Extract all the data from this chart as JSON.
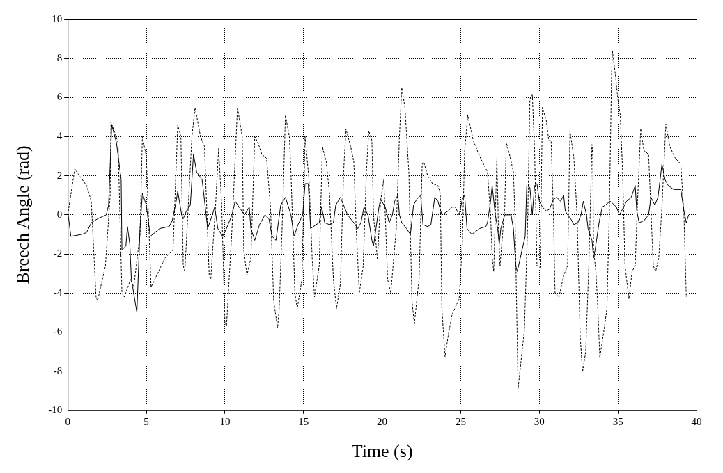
{
  "chart_data": {
    "type": "line",
    "xlabel": "Time (s)",
    "ylabel": "Breech Angle (rad)",
    "xlim": [
      0,
      40
    ],
    "ylim": [
      -10,
      10
    ],
    "xticks": [
      0,
      5,
      10,
      15,
      20,
      25,
      30,
      35,
      40
    ],
    "yticks": [
      -10,
      -8,
      -6,
      -4,
      -2,
      0,
      2,
      4,
      6,
      8,
      10
    ],
    "grid": true,
    "legend": false,
    "marker": "none",
    "series": [
      {
        "color": "#000000",
        "line_style": "dashed",
        "x": [
          0,
          0.45,
          1.2,
          1.5,
          1.8,
          1.9,
          2.4,
          2.7,
          2.75,
          3.0,
          3.2,
          3.45,
          3.6,
          4.0,
          4.2,
          4.6,
          4.75,
          5.0,
          5.3,
          6.2,
          6.7,
          7.0,
          7.2,
          7.35,
          7.45,
          7.9,
          8.1,
          8.45,
          8.7,
          9.0,
          9.1,
          9.4,
          9.6,
          9.8,
          10.0,
          10.1,
          10.45,
          10.8,
          11.1,
          11.2,
          11.4,
          11.65,
          11.9,
          12.1,
          12.35,
          12.65,
          12.9,
          13.1,
          13.35,
          13.45,
          13.65,
          13.85,
          14.1,
          14.2,
          14.45,
          14.6,
          14.9,
          15.1,
          15.35,
          15.55,
          15.7,
          16.0,
          16.2,
          16.45,
          16.65,
          16.9,
          17.1,
          17.35,
          17.55,
          17.7,
          18.0,
          18.2,
          18.35,
          18.55,
          18.8,
          19.0,
          19.15,
          19.35,
          19.45,
          19.7,
          19.9,
          20.1,
          20.2,
          20.35,
          20.55,
          20.9,
          21.1,
          21.25,
          21.45,
          21.7,
          21.9,
          22.05,
          22.2,
          22.35,
          22.55,
          22.65,
          22.9,
          23.2,
          23.55,
          23.7,
          23.8,
          24.0,
          24.2,
          24.45,
          24.9,
          25.1,
          25.25,
          25.45,
          25.8,
          26.2,
          26.7,
          26.9,
          27.0,
          27.1,
          27.3,
          27.4,
          27.5,
          27.8,
          27.9,
          28.1,
          28.35,
          28.45,
          28.6,
          28.65,
          28.9,
          29.05,
          29.25,
          29.4,
          29.55,
          29.7,
          29.85,
          30.05,
          30.2,
          30.45,
          30.6,
          30.75,
          30.9,
          31.0,
          31.25,
          31.55,
          31.8,
          31.95,
          32.2,
          32.4,
          32.6,
          32.75,
          32.95,
          33.15,
          33.35,
          33.4,
          33.45,
          33.6,
          33.7,
          33.85,
          34.15,
          34.3,
          34.45,
          34.6,
          34.65,
          34.85,
          35.0,
          35.15,
          35.3,
          35.45,
          35.7,
          35.9,
          36.1,
          36.25,
          36.45,
          36.65,
          36.95,
          37.25,
          37.4,
          37.6,
          37.8,
          38.05,
          38.3,
          38.65,
          39.0,
          39.2,
          39.35
        ],
        "values": [
          0,
          2.35,
          1.5,
          0.7,
          -4.2,
          -4.4,
          -2.6,
          1.0,
          4.75,
          4.2,
          3.7,
          -4.0,
          -4.2,
          -3.3,
          -3.7,
          -1.0,
          4.0,
          3.0,
          -3.7,
          -2.2,
          -1.8,
          4.6,
          4.0,
          -2.6,
          -2.9,
          4.0,
          5.5,
          4.0,
          3.5,
          -3.1,
          -3.3,
          0.4,
          3.4,
          0.4,
          -5.5,
          -5.7,
          -0.7,
          5.5,
          4.0,
          -1.8,
          -3.1,
          -2.2,
          4.0,
          3.7,
          3.1,
          2.9,
          0.4,
          -4.4,
          -5.8,
          -4.8,
          -0.4,
          5.1,
          4.0,
          2.2,
          -4.0,
          -4.8,
          -3.3,
          4.0,
          1.8,
          -2.2,
          -4.2,
          -2.6,
          3.5,
          2.7,
          1.1,
          -3.3,
          -4.8,
          -3.5,
          2.2,
          4.4,
          3.5,
          2.7,
          -0.7,
          -4.0,
          -2.6,
          2.2,
          4.3,
          3.8,
          0,
          -2.3,
          0.7,
          1.8,
          0,
          -3.3,
          -4.0,
          -0.7,
          4.0,
          6.5,
          5.5,
          2.2,
          -4.4,
          -5.6,
          -4.4,
          -3.3,
          2.6,
          2.7,
          2.0,
          1.6,
          1.5,
          1.1,
          -4.8,
          -7.25,
          -6.2,
          -5.1,
          -4.3,
          -1.5,
          3.3,
          5.1,
          3.8,
          3.0,
          2.2,
          0,
          -2.2,
          -2.9,
          2.9,
          -0.7,
          -2.6,
          0.4,
          3.7,
          3.1,
          2.2,
          0,
          -6.6,
          -8.9,
          -7.0,
          -5.9,
          -0.7,
          5.9,
          6.2,
          3.3,
          -2.6,
          -2.7,
          5.5,
          4.8,
          3.8,
          3.8,
          0,
          -4.0,
          -4.2,
          -3.1,
          -2.6,
          4.3,
          2.9,
          0,
          -6.2,
          -8.05,
          -7.0,
          -2.6,
          3.6,
          3.0,
          -1.8,
          -2.9,
          -4.4,
          -7.3,
          -5.7,
          -4.8,
          0,
          7.3,
          8.4,
          7.1,
          5.9,
          5.1,
          2.2,
          -2.6,
          -4.3,
          -2.9,
          -2.6,
          0.7,
          4.4,
          3.3,
          3.1,
          -2.6,
          -2.9,
          -2.2,
          0.4,
          4.65,
          3.5,
          2.9,
          2.6,
          0,
          -4.2
        ]
      },
      {
        "color": "#000000",
        "line_style": "solid",
        "x": [
          0,
          0.2,
          0.9,
          1.2,
          1.5,
          1.9,
          2.45,
          2.6,
          2.8,
          3.1,
          3.4,
          3.45,
          3.7,
          3.8,
          3.95,
          4.05,
          4.4,
          4.6,
          4.75,
          5.0,
          5.25,
          5.55,
          5.85,
          6.45,
          6.65,
          6.9,
          7.0,
          7.25,
          7.35,
          7.55,
          7.8,
          8.0,
          8.2,
          8.55,
          8.75,
          8.9,
          9.2,
          9.35,
          9.55,
          9.85,
          10.1,
          10.45,
          10.65,
          10.9,
          11.25,
          11.55,
          11.65,
          11.9,
          12.2,
          12.55,
          12.8,
          13.0,
          13.25,
          13.55,
          13.85,
          14.2,
          14.4,
          14.65,
          14.95,
          15.1,
          15.3,
          15.45,
          15.8,
          16.0,
          16.15,
          16.35,
          16.65,
          16.9,
          17.05,
          17.35,
          17.55,
          17.8,
          18.2,
          18.45,
          18.65,
          18.85,
          19.1,
          19.35,
          19.45,
          19.8,
          19.9,
          20.2,
          20.45,
          20.65,
          20.8,
          21.0,
          21.1,
          21.25,
          21.55,
          21.8,
          22.0,
          22.2,
          22.45,
          22.6,
          22.9,
          23.1,
          23.35,
          23.55,
          23.8,
          24.2,
          24.45,
          24.65,
          24.9,
          25.1,
          25.25,
          25.4,
          25.7,
          26.2,
          26.6,
          26.7,
          26.9,
          27.0,
          27.2,
          27.35,
          27.45,
          27.55,
          27.8,
          28.0,
          28.2,
          28.35,
          28.5,
          28.6,
          28.9,
          29.1,
          29.2,
          29.4,
          29.55,
          29.7,
          29.85,
          30.0,
          30.2,
          30.45,
          30.65,
          30.9,
          31.1,
          31.35,
          31.55,
          31.65,
          31.8,
          32.0,
          32.2,
          32.45,
          32.65,
          32.8,
          33.0,
          33.1,
          33.35,
          33.45,
          33.55,
          33.8,
          34.0,
          34.2,
          34.5,
          34.65,
          34.9,
          35.1,
          35.55,
          35.85,
          36.1,
          36.2,
          36.35,
          36.65,
          36.95,
          37.1,
          37.35,
          37.55,
          37.8,
          38.0,
          38.2,
          38.55,
          39.0,
          39.2,
          39.35,
          39.5
        ],
        "values": [
          0.2,
          -1.1,
          -1.0,
          -0.9,
          -0.4,
          -0.2,
          0,
          0.5,
          4.6,
          3.7,
          1.8,
          -1.8,
          -1.6,
          -0.6,
          -1.5,
          -3.3,
          -5.0,
          -0.7,
          1.1,
          0.5,
          -1.1,
          -0.9,
          -0.7,
          -0.6,
          -0.3,
          0.7,
          1.2,
          0,
          -0.2,
          0.2,
          0.5,
          3.1,
          2.2,
          1.8,
          0.4,
          -0.7,
          0,
          0.4,
          -0.7,
          -1.1,
          -0.7,
          0,
          0.7,
          0.4,
          0,
          0.4,
          -0.7,
          -1.3,
          -0.5,
          0,
          -0.2,
          -1.1,
          -1.3,
          0.5,
          0.9,
          0,
          -1.1,
          -0.5,
          0,
          1.6,
          1.6,
          -0.7,
          -0.5,
          -0.4,
          0.4,
          -0.4,
          -0.5,
          -0.4,
          0.5,
          0.9,
          0.5,
          0,
          -0.4,
          -0.7,
          -0.4,
          0.4,
          0,
          -1.3,
          -1.6,
          0.4,
          0.8,
          0.4,
          -0.4,
          0,
          0.7,
          1.0,
          0,
          -0.4,
          -0.7,
          -1.0,
          0.5,
          0.8,
          1.0,
          -0.5,
          -0.6,
          -0.5,
          0.9,
          0.7,
          0,
          0.2,
          0.4,
          0.4,
          0,
          0.8,
          1.0,
          -0.7,
          -1.0,
          -0.7,
          -0.6,
          -0.4,
          0.7,
          1.5,
          0,
          -0.7,
          -1.5,
          -0.7,
          0,
          0,
          0,
          -0.7,
          -2.6,
          -2.9,
          -1.8,
          -1.1,
          1.5,
          1.4,
          0,
          1.5,
          1.6,
          0.7,
          0.4,
          0.2,
          0.3,
          0.8,
          0.9,
          0.7,
          1.0,
          0.2,
          0,
          -0.2,
          -0.5,
          -0.4,
          0,
          0.7,
          0,
          -0.7,
          -1.3,
          -2.2,
          -1.8,
          -0.4,
          0.4,
          0.5,
          0.7,
          0.6,
          0.4,
          0,
          0.7,
          0.9,
          1.5,
          0.2,
          -0.4,
          -0.3,
          0,
          0.9,
          0.5,
          0.9,
          2.6,
          1.8,
          1.5,
          1.3,
          1.3,
          0.2,
          -0.4,
          0
        ]
      }
    ]
  }
}
